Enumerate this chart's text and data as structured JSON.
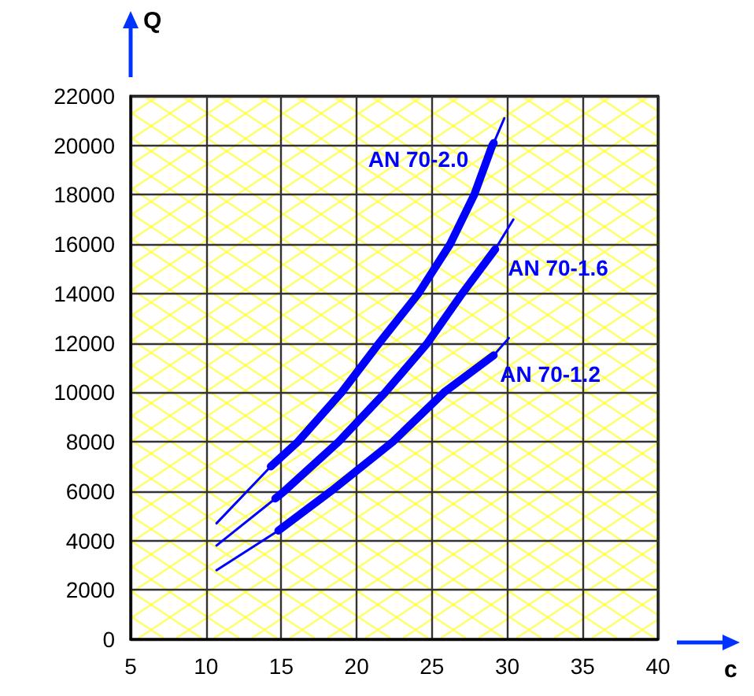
{
  "chart_data": {
    "type": "line",
    "xlabel": "c",
    "ylabel": "Q",
    "xlim": [
      5,
      40
    ],
    "xticks": [
      5,
      10,
      15,
      20,
      25,
      30,
      35,
      40
    ],
    "ylim": [
      0,
      22000
    ],
    "yticks": [
      0,
      2000,
      4000,
      6000,
      8000,
      10000,
      12000,
      14000,
      16000,
      18000,
      20000,
      22000
    ],
    "grid": true,
    "legend": false,
    "marker": "none",
    "line_style": "solid",
    "series": [
      {
        "name": "AN 70-2.0",
        "color": "#0000ff",
        "x": [
          14.3,
          16.1,
          19.0,
          21.5,
          24.1,
          26.2,
          27.8,
          29.0,
          29.1
        ],
        "values": [
          7000,
          8000,
          10000,
          12000,
          14000,
          16000,
          18000,
          20000,
          20100
        ]
      },
      {
        "name": "AN 70-1.6",
        "color": "#0000ff",
        "x": [
          14.6,
          15.2,
          18.8,
          21.9,
          24.7,
          27.0,
          29.2
        ],
        "values": [
          5700,
          6000,
          8000,
          10000,
          12000,
          14000,
          15800
        ]
      },
      {
        "name": "AN 70-1.2",
        "color": "#0000ff",
        "x": [
          14.8,
          18.3,
          22.4,
          25.8,
          29.1
        ],
        "values": [
          4400,
          6000,
          8000,
          10000,
          11500
        ]
      },
      {
        "color": "#0000ff",
        "x": [
          10.7,
          14.3,
          null,
          29.1,
          29.8
        ],
        "values": [
          4700,
          7000,
          null,
          20100,
          21100
        ]
      },
      {
        "color": "#0000ff",
        "x": [
          10.7,
          14.6,
          null,
          29.2,
          30.4
        ],
        "values": [
          3800,
          5700,
          null,
          15800,
          17000
        ]
      },
      {
        "color": "#0000ff",
        "x": [
          10.7,
          14.8,
          null,
          29.1,
          30.1
        ],
        "values": [
          2800,
          4400,
          null,
          11500,
          12200
        ]
      }
    ]
  }
}
